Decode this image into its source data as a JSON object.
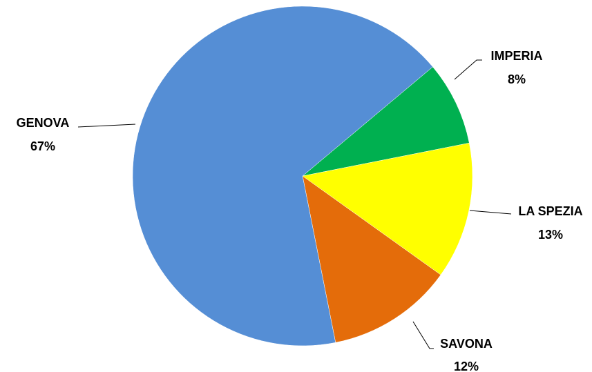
{
  "chart_data": {
    "type": "pie",
    "title": "",
    "slices": [
      {
        "label": "IMPERIA",
        "percent_label": "8%",
        "value": 8,
        "color": "#00b050"
      },
      {
        "label": "LA SPEZIA",
        "percent_label": "13%",
        "value": 13,
        "color": "#ffff00"
      },
      {
        "label": "SAVONA",
        "percent_label": "12%",
        "value": 12,
        "color": "#e46c0a"
      },
      {
        "label": "GENOVA",
        "percent_label": "67%",
        "value": 67,
        "color": "#558ed5"
      }
    ],
    "legend": "none",
    "data_labels": "outside-with-leader-lines"
  }
}
